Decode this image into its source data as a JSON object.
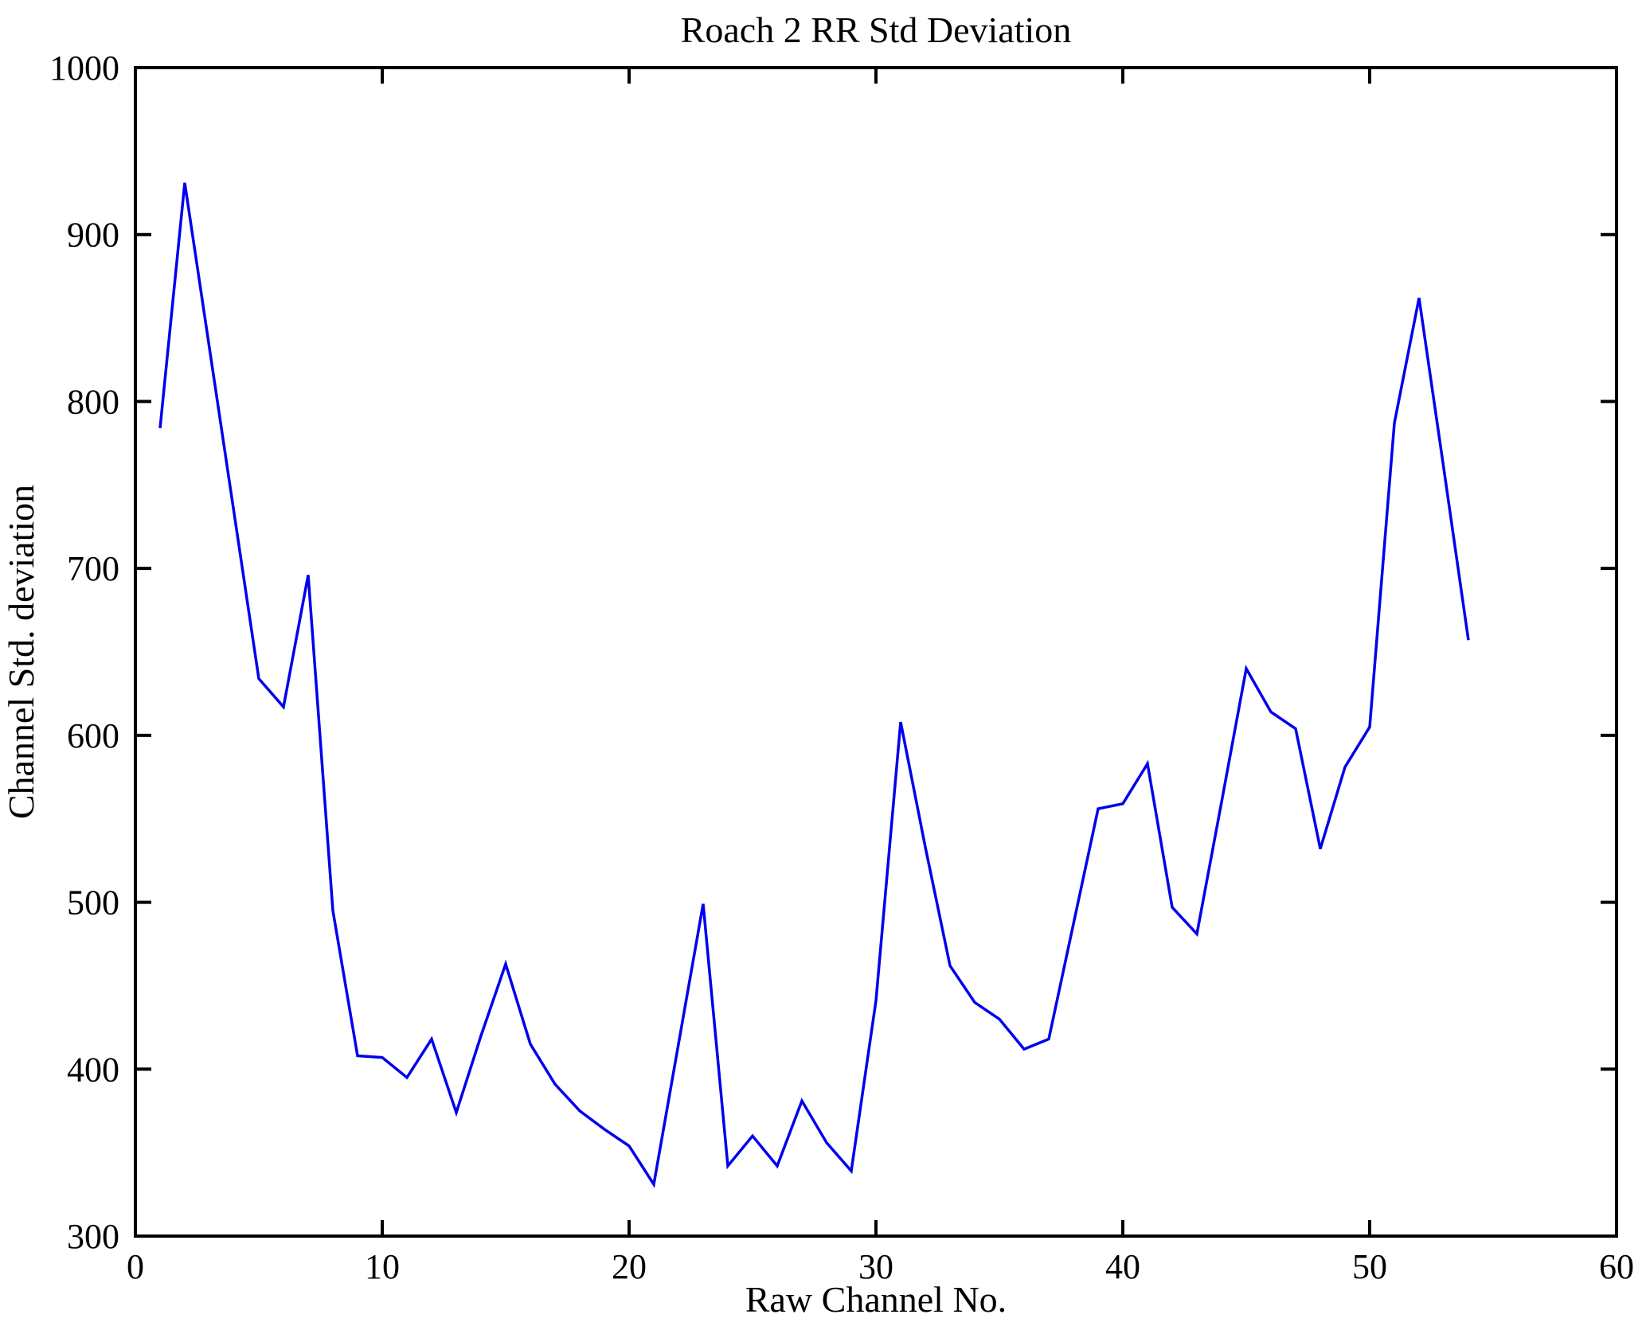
{
  "figure": {
    "background": "#ffffff"
  },
  "chart_data": {
    "type": "line",
    "title": "Roach 2 RR Std Deviation",
    "xlabel": "Raw Channel No.",
    "ylabel": "Channel Std. deviation",
    "xlim": [
      0,
      60
    ],
    "ylim": [
      300,
      1000
    ],
    "x_ticks": [
      0,
      10,
      20,
      30,
      40,
      50,
      60
    ],
    "y_ticks": [
      300,
      400,
      500,
      600,
      700,
      800,
      900,
      1000
    ],
    "grid": false,
    "legend_position": "none",
    "line_color": "#0000ee",
    "axis_color": "#000000",
    "series": [
      {
        "name": "Channel Std. deviation",
        "x": [
          1,
          2,
          3,
          4,
          5,
          6,
          7,
          8,
          9,
          10,
          11,
          12,
          13,
          14,
          15,
          16,
          17,
          18,
          19,
          20,
          21,
          22,
          23,
          24,
          25,
          26,
          27,
          28,
          29,
          30,
          31,
          32,
          33,
          34,
          35,
          36,
          37,
          38,
          39,
          40,
          41,
          42,
          43,
          44,
          45,
          46,
          47,
          48,
          49,
          50,
          51,
          52,
          53,
          54
        ],
        "values": [
          784,
          931,
          832,
          733,
          634,
          617,
          696,
          495,
          408,
          407,
          395,
          418,
          374,
          420,
          463,
          415,
          391,
          375,
          364,
          354,
          331,
          415,
          499,
          342,
          360,
          342,
          381,
          356,
          339,
          441,
          608,
          533,
          462,
          440,
          430,
          412,
          418,
          487,
          556,
          559,
          583,
          497,
          481,
          560,
          640,
          614,
          604,
          532,
          581,
          605,
          787,
          862,
          760,
          657
        ]
      }
    ]
  }
}
